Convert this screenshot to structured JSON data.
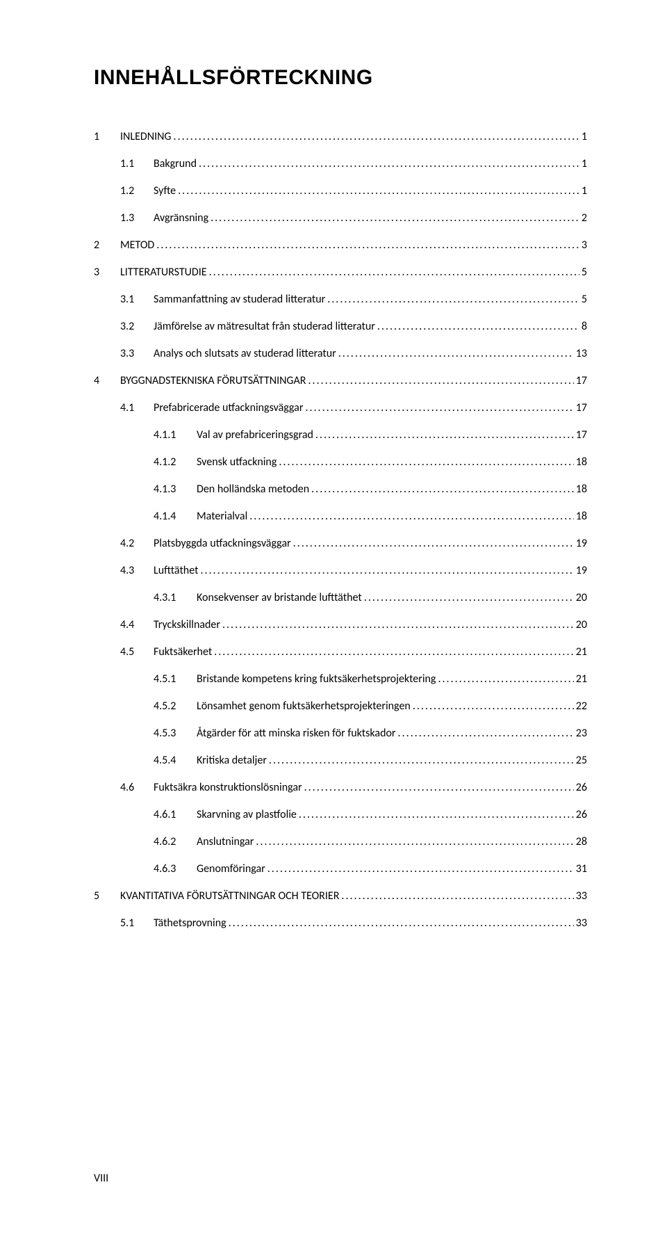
{
  "title": "INNEHÅLLSFÖRTECKNING",
  "footer": "VIII",
  "toc": [
    {
      "level": 1,
      "num": "1",
      "label": "INLEDNING",
      "page": "1"
    },
    {
      "level": 2,
      "num": "1.1",
      "label": "Bakgrund",
      "page": "1"
    },
    {
      "level": 2,
      "num": "1.2",
      "label": "Syfte",
      "page": "1"
    },
    {
      "level": 2,
      "num": "1.3",
      "label": "Avgränsning",
      "page": "2"
    },
    {
      "level": 1,
      "num": "2",
      "label": "METOD",
      "page": "3"
    },
    {
      "level": 1,
      "num": "3",
      "label": "LITTERATURSTUDIE",
      "page": "5"
    },
    {
      "level": 2,
      "num": "3.1",
      "label": "Sammanfattning av studerad litteratur",
      "page": "5"
    },
    {
      "level": 2,
      "num": "3.2",
      "label": "Jämförelse av mätresultat från studerad litteratur",
      "page": "8"
    },
    {
      "level": 2,
      "num": "3.3",
      "label": "Analys och slutsats av studerad litteratur",
      "page": "13"
    },
    {
      "level": 1,
      "num": "4",
      "label": "BYGGNADSTEKNISKA FÖRUTSÄTTNINGAR",
      "page": "17"
    },
    {
      "level": 2,
      "num": "4.1",
      "label": "Prefabricerade utfackningsväggar",
      "page": "17"
    },
    {
      "level": 3,
      "num": "4.1.1",
      "label": "Val av prefabriceringsgrad",
      "page": "17"
    },
    {
      "level": 3,
      "num": "4.1.2",
      "label": "Svensk utfackning",
      "page": "18"
    },
    {
      "level": 3,
      "num": "4.1.3",
      "label": "Den holländska metoden",
      "page": "18"
    },
    {
      "level": 3,
      "num": "4.1.4",
      "label": "Materialval",
      "page": "18"
    },
    {
      "level": 2,
      "num": "4.2",
      "label": "Platsbyggda utfackningsväggar",
      "page": "19"
    },
    {
      "level": 2,
      "num": "4.3",
      "label": "Lufttäthet",
      "page": "19"
    },
    {
      "level": 3,
      "num": "4.3.1",
      "label": "Konsekvenser av bristande lufttäthet",
      "page": "20"
    },
    {
      "level": 2,
      "num": "4.4",
      "label": "Tryckskillnader",
      "page": "20"
    },
    {
      "level": 2,
      "num": "4.5",
      "label": "Fuktsäkerhet",
      "page": "21"
    },
    {
      "level": 3,
      "num": "4.5.1",
      "label": "Bristande kompetens kring fuktsäkerhetsprojektering",
      "page": "21"
    },
    {
      "level": 3,
      "num": "4.5.2",
      "label": "Lönsamhet genom fuktsäkerhetsprojekteringen",
      "page": "22"
    },
    {
      "level": 3,
      "num": "4.5.3",
      "label": "Åtgärder för att minska risken för fuktskador",
      "page": "23"
    },
    {
      "level": 3,
      "num": "4.5.4",
      "label": "Kritiska detaljer",
      "page": "25"
    },
    {
      "level": 2,
      "num": "4.6",
      "label": "Fuktsäkra konstruktionslösningar",
      "page": "26"
    },
    {
      "level": 3,
      "num": "4.6.1",
      "label": "Skarvning av plastfolie",
      "page": "26"
    },
    {
      "level": 3,
      "num": "4.6.2",
      "label": "Anslutningar",
      "page": "28"
    },
    {
      "level": 3,
      "num": "4.6.3",
      "label": "Genomföringar",
      "page": "31"
    },
    {
      "level": 1,
      "num": "5",
      "label": "KVANTITATIVA FÖRUTSÄTTNINGAR OCH TEORIER",
      "page": "33"
    },
    {
      "level": 2,
      "num": "5.1",
      "label": "Täthetsprovning",
      "page": "33"
    }
  ]
}
